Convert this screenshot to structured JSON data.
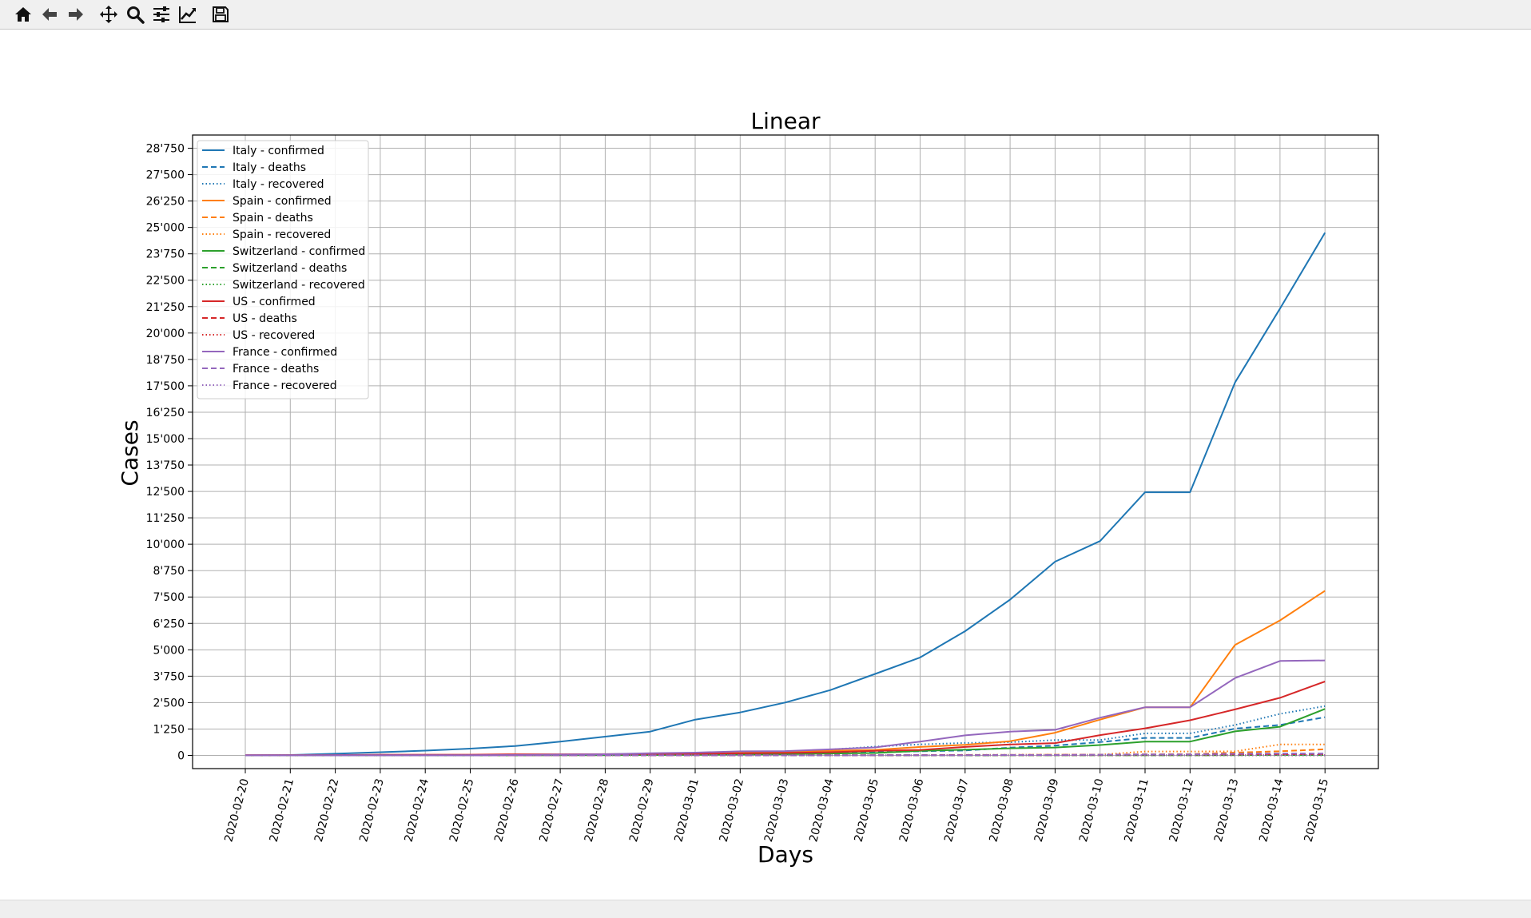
{
  "toolbar": {
    "buttons": [
      {
        "name": "home-button",
        "icon": "home-icon"
      },
      {
        "name": "back-button",
        "icon": "arrow-left-icon"
      },
      {
        "name": "forward-button",
        "icon": "arrow-right-icon"
      },
      {
        "name": "pan-button",
        "icon": "move-icon"
      },
      {
        "name": "zoom-button",
        "icon": "magnifier-icon"
      },
      {
        "name": "configure-subplots-button",
        "icon": "sliders-icon"
      },
      {
        "name": "edit-axis-button",
        "icon": "line-chart-icon"
      },
      {
        "name": "save-button",
        "icon": "floppy-disk-icon"
      }
    ]
  },
  "chart_data": {
    "type": "line",
    "title": "Linear",
    "xlabel": "Days",
    "ylabel": "Cases",
    "ylim": [
      -625,
      29375
    ],
    "grid": true,
    "legend_position": "upper-left",
    "categories": [
      "2020-02-20",
      "2020-02-21",
      "2020-02-22",
      "2020-02-23",
      "2020-02-24",
      "2020-02-25",
      "2020-02-26",
      "2020-02-27",
      "2020-02-28",
      "2020-02-29",
      "2020-03-01",
      "2020-03-02",
      "2020-03-03",
      "2020-03-04",
      "2020-03-05",
      "2020-03-06",
      "2020-03-07",
      "2020-03-08",
      "2020-03-09",
      "2020-03-10",
      "2020-03-11",
      "2020-03-12",
      "2020-03-13",
      "2020-03-14",
      "2020-03-15"
    ],
    "yticks": [
      0,
      1250,
      2500,
      3750,
      5000,
      6250,
      7500,
      8750,
      10000,
      11250,
      12500,
      13750,
      15000,
      16250,
      17500,
      18750,
      20000,
      21250,
      22500,
      23750,
      25000,
      26250,
      27500,
      28750
    ],
    "ytick_labels": [
      "0",
      "1'250",
      "2'500",
      "3'750",
      "5'000",
      "6'250",
      "7'500",
      "8'750",
      "10'000",
      "11'250",
      "12'500",
      "13'750",
      "15'000",
      "16'250",
      "17'500",
      "18'750",
      "20'000",
      "21'250",
      "22'500",
      "23'750",
      "25'000",
      "26'250",
      "27'500",
      "28'750"
    ],
    "series": [
      {
        "name": "Italy - confirmed",
        "color": "#1f77b4",
        "dash": "solid",
        "values": [
          3,
          20,
          79,
          150,
          227,
          320,
          445,
          650,
          888,
          1128,
          1694,
          2036,
          2502,
          3089,
          3858,
          4636,
          5883,
          7375,
          9172,
          10149,
          12462,
          12462,
          17660,
          21157,
          24747
        ]
      },
      {
        "name": "Italy - deaths",
        "color": "#1f77b4",
        "dash": "dashed",
        "values": [
          0,
          1,
          2,
          3,
          7,
          10,
          12,
          17,
          21,
          29,
          34,
          52,
          79,
          107,
          148,
          197,
          233,
          366,
          463,
          631,
          827,
          827,
          1266,
          1441,
          1809
        ]
      },
      {
        "name": "Italy - recovered",
        "color": "#1f77b4",
        "dash": "dotted",
        "values": [
          0,
          0,
          0,
          0,
          0,
          1,
          3,
          45,
          46,
          46,
          83,
          149,
          160,
          276,
          414,
          523,
          589,
          622,
          724,
          724,
          1045,
          1045,
          1439,
          1966,
          2335
        ]
      },
      {
        "name": "Spain - confirmed",
        "color": "#ff7f0e",
        "dash": "solid",
        "values": [
          2,
          2,
          2,
          2,
          2,
          2,
          13,
          15,
          32,
          45,
          84,
          120,
          165,
          222,
          259,
          400,
          500,
          673,
          1073,
          1695,
          2277,
          2277,
          5232,
          6391,
          7798
        ]
      },
      {
        "name": "Spain - deaths",
        "color": "#ff7f0e",
        "dash": "dashed",
        "values": [
          0,
          0,
          0,
          0,
          0,
          0,
          0,
          0,
          0,
          0,
          0,
          0,
          1,
          2,
          3,
          5,
          10,
          17,
          28,
          35,
          54,
          55,
          133,
          195,
          289
        ]
      },
      {
        "name": "Spain - recovered",
        "color": "#ff7f0e",
        "dash": "dotted",
        "values": [
          0,
          0,
          0,
          0,
          0,
          0,
          0,
          0,
          0,
          0,
          0,
          2,
          2,
          2,
          2,
          2,
          30,
          30,
          32,
          32,
          183,
          183,
          193,
          517,
          517
        ]
      },
      {
        "name": "Switzerland - confirmed",
        "color": "#2ca02c",
        "dash": "solid",
        "values": [
          0,
          0,
          0,
          0,
          0,
          1,
          1,
          8,
          8,
          18,
          27,
          42,
          56,
          90,
          114,
          214,
          268,
          337,
          374,
          491,
          652,
          652,
          1139,
          1359,
          2200
        ]
      },
      {
        "name": "Switzerland - deaths",
        "color": "#2ca02c",
        "dash": "dashed",
        "values": [
          0,
          0,
          0,
          0,
          0,
          0,
          0,
          0,
          0,
          0,
          0,
          0,
          0,
          0,
          1,
          1,
          1,
          2,
          2,
          3,
          4,
          4,
          11,
          13,
          14
        ]
      },
      {
        "name": "Switzerland - recovered",
        "color": "#2ca02c",
        "dash": "dotted",
        "values": [
          0,
          0,
          0,
          0,
          0,
          0,
          0,
          0,
          0,
          0,
          0,
          0,
          0,
          2,
          2,
          3,
          3,
          3,
          3,
          3,
          4,
          4,
          4,
          4,
          4
        ]
      },
      {
        "name": "US - confirmed",
        "color": "#d62728",
        "dash": "solid",
        "values": [
          13,
          15,
          15,
          35,
          35,
          35,
          53,
          53,
          59,
          68,
          74,
          98,
          118,
          149,
          217,
          262,
          402,
          518,
          583,
          959,
          1281,
          1663,
          2179,
          2727,
          3499
        ]
      },
      {
        "name": "US - deaths",
        "color": "#d62728",
        "dash": "dashed",
        "values": [
          0,
          0,
          0,
          0,
          0,
          0,
          0,
          0,
          0,
          1,
          1,
          6,
          7,
          11,
          12,
          14,
          17,
          21,
          22,
          28,
          36,
          40,
          47,
          54,
          63
        ]
      },
      {
        "name": "US - recovered",
        "color": "#d62728",
        "dash": "dotted",
        "values": [
          0,
          0,
          0,
          0,
          0,
          0,
          0,
          0,
          0,
          0,
          0,
          0,
          0,
          0,
          0,
          0,
          0,
          0,
          0,
          0,
          8,
          12,
          12,
          12,
          12
        ]
      },
      {
        "name": "France - confirmed",
        "color": "#9467bd",
        "dash": "solid",
        "values": [
          12,
          12,
          12,
          12,
          12,
          12,
          18,
          38,
          57,
          100,
          130,
          191,
          204,
          285,
          377,
          653,
          949,
          1126,
          1209,
          1784,
          2281,
          2281,
          3661,
          4469,
          4499
        ]
      },
      {
        "name": "France - deaths",
        "color": "#9467bd",
        "dash": "dashed",
        "values": [
          1,
          1,
          1,
          1,
          1,
          1,
          2,
          2,
          2,
          2,
          2,
          3,
          4,
          4,
          6,
          9,
          11,
          19,
          19,
          33,
          48,
          48,
          79,
          91,
          91
        ]
      },
      {
        "name": "France - recovered",
        "color": "#9467bd",
        "dash": "dotted",
        "values": [
          4,
          4,
          4,
          4,
          4,
          4,
          11,
          11,
          11,
          12,
          12,
          12,
          12,
          12,
          12,
          12,
          12,
          12,
          12,
          12,
          12,
          12,
          12,
          12,
          12
        ]
      }
    ]
  }
}
